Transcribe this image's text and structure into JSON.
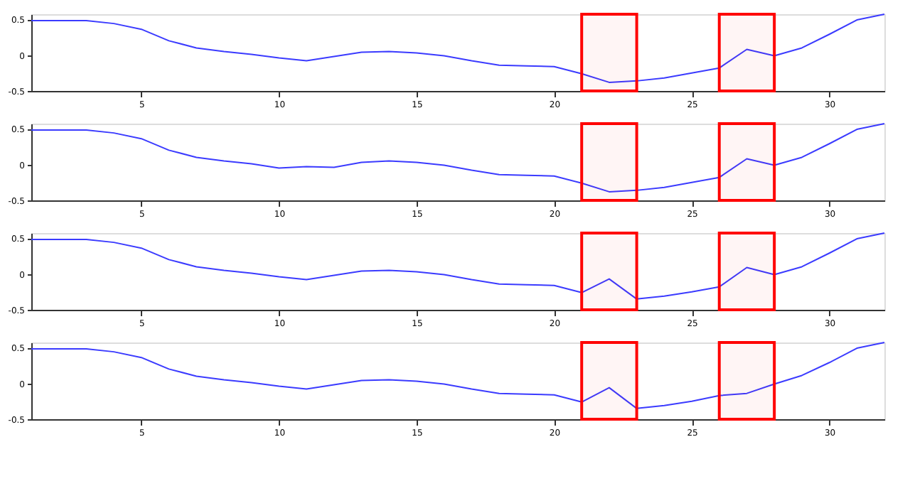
{
  "chart_data": [
    {
      "type": "line",
      "x": [
        1,
        2,
        3,
        4,
        5,
        6,
        7,
        8,
        9,
        10,
        11,
        12,
        13,
        14,
        15,
        16,
        17,
        18,
        19,
        20,
        21,
        22,
        23,
        24,
        25,
        26,
        27,
        28,
        29,
        30,
        31,
        32
      ],
      "series": [
        {
          "color": "#3b3bff",
          "values": [
            0.48,
            0.48,
            0.48,
            0.44,
            0.36,
            0.2,
            0.1,
            0.05,
            0.01,
            -0.04,
            -0.08,
            -0.02,
            0.04,
            0.05,
            0.03,
            -0.01,
            -0.08,
            -0.14,
            -0.15,
            -0.16,
            -0.26,
            -0.38,
            -0.36,
            -0.32,
            -0.25,
            -0.18,
            0.08,
            -0.01,
            0.1,
            0.29,
            0.49,
            0.57
          ]
        }
      ],
      "xlim": [
        1,
        32
      ],
      "ylim": [
        -0.5,
        0.57
      ],
      "xticks": [
        5,
        10,
        15,
        20,
        25,
        30
      ],
      "yticks": [
        -0.5,
        0,
        0.5
      ],
      "grid": false,
      "bands": [
        {
          "axis": "x",
          "from": 21,
          "to": 23,
          "color": "#ff0000"
        },
        {
          "axis": "x",
          "from": 26,
          "to": 28,
          "color": "#ff0000"
        }
      ]
    },
    {
      "type": "line",
      "x": [
        1,
        2,
        3,
        4,
        5,
        6,
        7,
        8,
        9,
        10,
        11,
        12,
        13,
        14,
        15,
        16,
        17,
        18,
        19,
        20,
        21,
        22,
        23,
        24,
        25,
        26,
        27,
        28,
        29,
        30,
        31,
        32
      ],
      "series": [
        {
          "color": "#3b3bff",
          "values": [
            0.48,
            0.48,
            0.48,
            0.44,
            0.36,
            0.2,
            0.1,
            0.05,
            0.01,
            -0.05,
            -0.03,
            -0.04,
            0.03,
            0.05,
            0.03,
            -0.01,
            -0.08,
            -0.14,
            -0.15,
            -0.16,
            -0.26,
            -0.38,
            -0.36,
            -0.32,
            -0.25,
            -0.18,
            0.08,
            -0.01,
            0.1,
            0.29,
            0.49,
            0.57
          ]
        }
      ],
      "xlim": [
        1,
        32
      ],
      "ylim": [
        -0.5,
        0.57
      ],
      "xticks": [
        5,
        10,
        15,
        20,
        25,
        30
      ],
      "yticks": [
        -0.5,
        0,
        0.5
      ],
      "grid": false,
      "bands": [
        {
          "axis": "x",
          "from": 21,
          "to": 23,
          "color": "#ff0000"
        },
        {
          "axis": "x",
          "from": 26,
          "to": 28,
          "color": "#ff0000"
        }
      ]
    },
    {
      "type": "line",
      "x": [
        1,
        2,
        3,
        4,
        5,
        6,
        7,
        8,
        9,
        10,
        11,
        12,
        13,
        14,
        15,
        16,
        17,
        18,
        19,
        20,
        21,
        22,
        23,
        24,
        25,
        26,
        27,
        28,
        29,
        30,
        31,
        32
      ],
      "series": [
        {
          "color": "#3b3bff",
          "values": [
            0.48,
            0.48,
            0.48,
            0.44,
            0.36,
            0.2,
            0.1,
            0.05,
            0.01,
            -0.04,
            -0.08,
            -0.02,
            0.04,
            0.05,
            0.03,
            -0.01,
            -0.08,
            -0.14,
            -0.15,
            -0.16,
            -0.26,
            -0.07,
            -0.35,
            -0.31,
            -0.25,
            -0.18,
            0.09,
            -0.01,
            0.1,
            0.29,
            0.49,
            0.57
          ]
        }
      ],
      "xlim": [
        1,
        32
      ],
      "ylim": [
        -0.5,
        0.57
      ],
      "xticks": [
        5,
        10,
        15,
        20,
        25,
        30
      ],
      "yticks": [
        -0.5,
        0,
        0.5
      ],
      "grid": false,
      "bands": [
        {
          "axis": "x",
          "from": 21,
          "to": 23,
          "color": "#ff0000"
        },
        {
          "axis": "x",
          "from": 26,
          "to": 28,
          "color": "#ff0000"
        }
      ]
    },
    {
      "type": "line",
      "x": [
        1,
        2,
        3,
        4,
        5,
        6,
        7,
        8,
        9,
        10,
        11,
        12,
        13,
        14,
        15,
        16,
        17,
        18,
        19,
        20,
        21,
        22,
        23,
        24,
        25,
        26,
        27,
        28,
        29,
        30,
        31,
        32
      ],
      "series": [
        {
          "color": "#3b3bff",
          "values": [
            0.48,
            0.48,
            0.48,
            0.44,
            0.36,
            0.2,
            0.1,
            0.05,
            0.01,
            -0.04,
            -0.08,
            -0.02,
            0.04,
            0.05,
            0.03,
            -0.01,
            -0.08,
            -0.14,
            -0.15,
            -0.16,
            -0.26,
            -0.06,
            -0.35,
            -0.31,
            -0.25,
            -0.17,
            -0.14,
            -0.01,
            0.11,
            0.29,
            0.49,
            0.57
          ]
        }
      ],
      "xlim": [
        1,
        32
      ],
      "ylim": [
        -0.5,
        0.57
      ],
      "xticks": [
        5,
        10,
        15,
        20,
        25,
        30
      ],
      "yticks": [
        -0.5,
        0,
        0.5
      ],
      "grid": false,
      "bands": [
        {
          "axis": "x",
          "from": 21,
          "to": 23,
          "color": "#ff0000"
        },
        {
          "axis": "x",
          "from": 26,
          "to": 28,
          "color": "#ff0000"
        }
      ]
    }
  ]
}
